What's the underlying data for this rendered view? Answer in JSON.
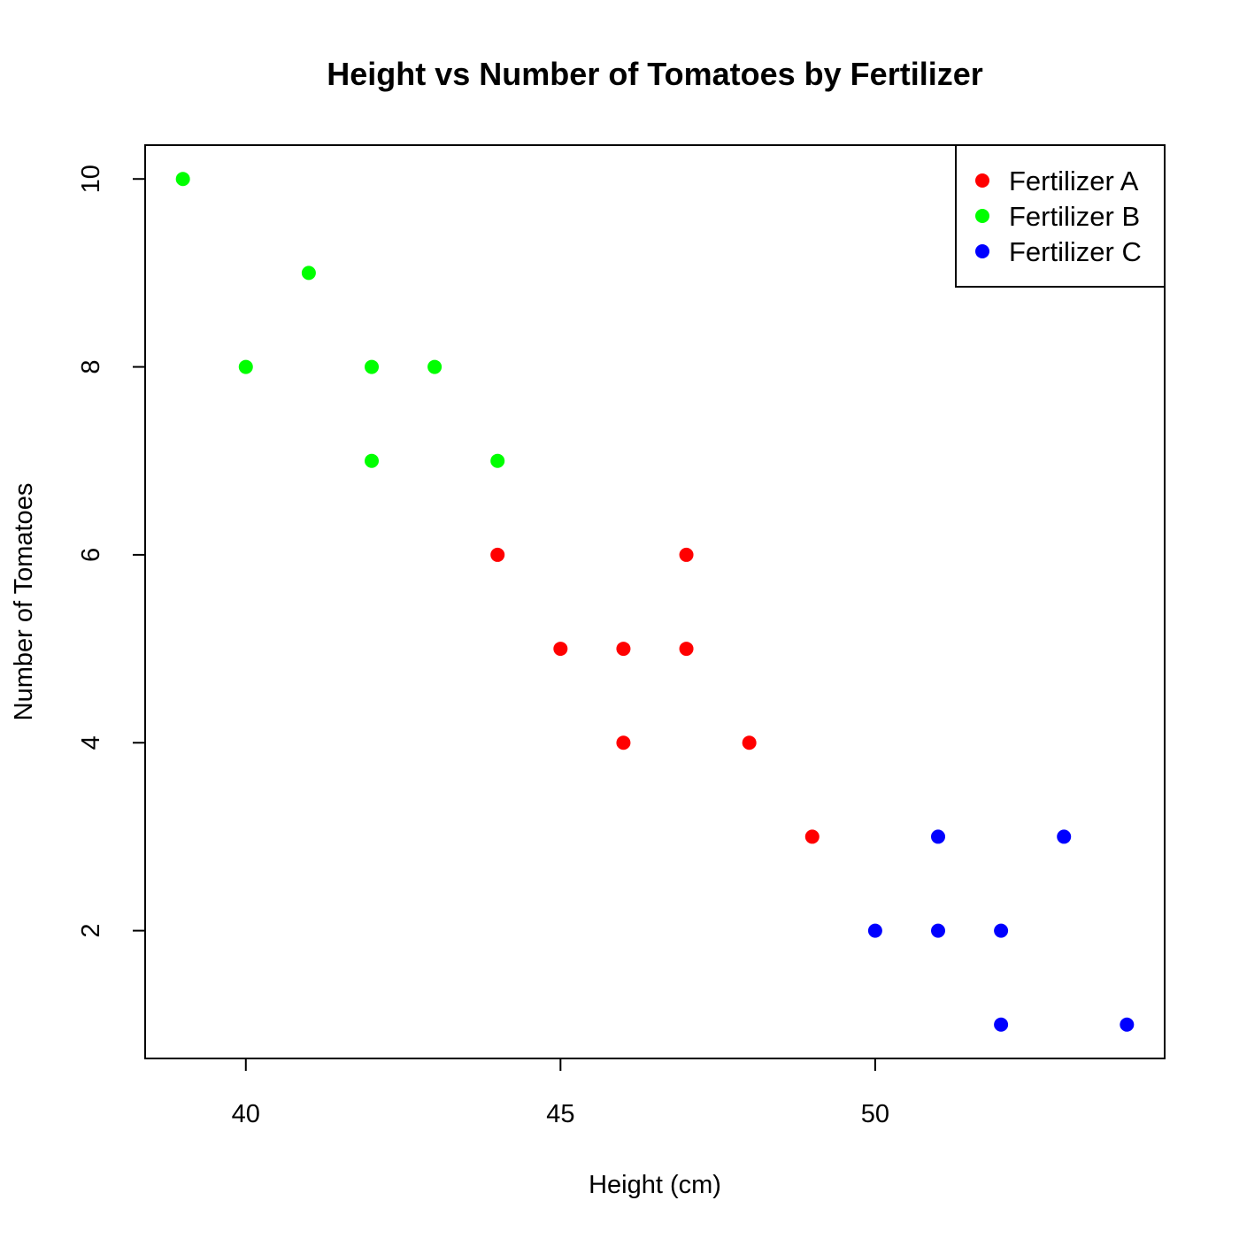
{
  "chart_data": {
    "type": "scatter",
    "title": "Height vs Number of Tomatoes by Fertilizer",
    "xlabel": "Height (cm)",
    "ylabel": "Number of Tomatoes",
    "xlim": [
      38.4,
      54.6
    ],
    "ylim": [
      0.64,
      10.36
    ],
    "xticks": [
      40,
      45,
      50
    ],
    "yticks": [
      2,
      4,
      6,
      8,
      10
    ],
    "grid": false,
    "legend_position": "top-right",
    "series": [
      {
        "name": "Fertilizer A",
        "color": "#ff0000",
        "points": [
          [
            44,
            6
          ],
          [
            45,
            5
          ],
          [
            46,
            5
          ],
          [
            46,
            4
          ],
          [
            47,
            6
          ],
          [
            47,
            5
          ],
          [
            48,
            4
          ],
          [
            49,
            3
          ]
        ]
      },
      {
        "name": "Fertilizer B",
        "color": "#00ff00",
        "points": [
          [
            39,
            10
          ],
          [
            40,
            8
          ],
          [
            41,
            9
          ],
          [
            42,
            8
          ],
          [
            42,
            7
          ],
          [
            43,
            8
          ],
          [
            44,
            7
          ]
        ]
      },
      {
        "name": "Fertilizer C",
        "color": "#0000ff",
        "points": [
          [
            50,
            2
          ],
          [
            51,
            3
          ],
          [
            51,
            2
          ],
          [
            52,
            2
          ],
          [
            52,
            1
          ],
          [
            53,
            3
          ],
          [
            54,
            1
          ]
        ]
      }
    ]
  }
}
